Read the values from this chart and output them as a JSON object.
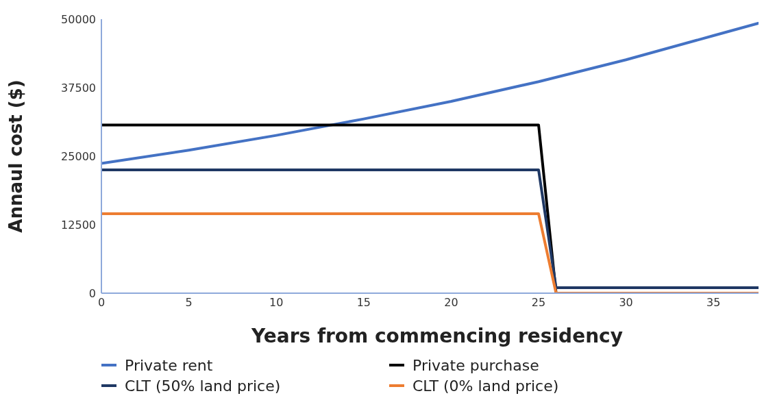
{
  "chart_data": {
    "type": "line",
    "xlabel": "Years from commencing residency",
    "ylabel": "Annaul cost ($)",
    "xlim": [
      0,
      38.4
    ],
    "xticks": [
      0,
      5,
      10,
      15,
      20,
      25,
      30,
      35
    ],
    "ylim": [
      0,
      50000
    ],
    "yticks": [
      0,
      12500,
      25000,
      37500,
      50000
    ],
    "grid": false,
    "legend": "bottom",
    "marker": "none",
    "line_style": "solid",
    "series": [
      {
        "name": "Private rent",
        "color": "#4472c4",
        "x": [
          0,
          5,
          10,
          15,
          20,
          25,
          30,
          35,
          38.4
        ],
        "values": [
          23700,
          26100,
          28800,
          31800,
          35000,
          38600,
          42600,
          47000,
          50000
        ]
      },
      {
        "name": "Private purchase",
        "color": "#000000",
        "x": [
          0,
          25,
          26,
          38.4
        ],
        "values": [
          30700,
          30700,
          0,
          0
        ]
      },
      {
        "name": "CLT (50% land price)",
        "color": "#1f3864",
        "x": [
          0,
          25,
          26,
          38.4
        ],
        "values": [
          22500,
          22500,
          1000,
          1000
        ]
      },
      {
        "name": "CLT (0% land price)",
        "color": "#ed7d31",
        "x": [
          0,
          25,
          26,
          38.4
        ],
        "values": [
          14500,
          14500,
          0,
          0
        ]
      }
    ]
  }
}
